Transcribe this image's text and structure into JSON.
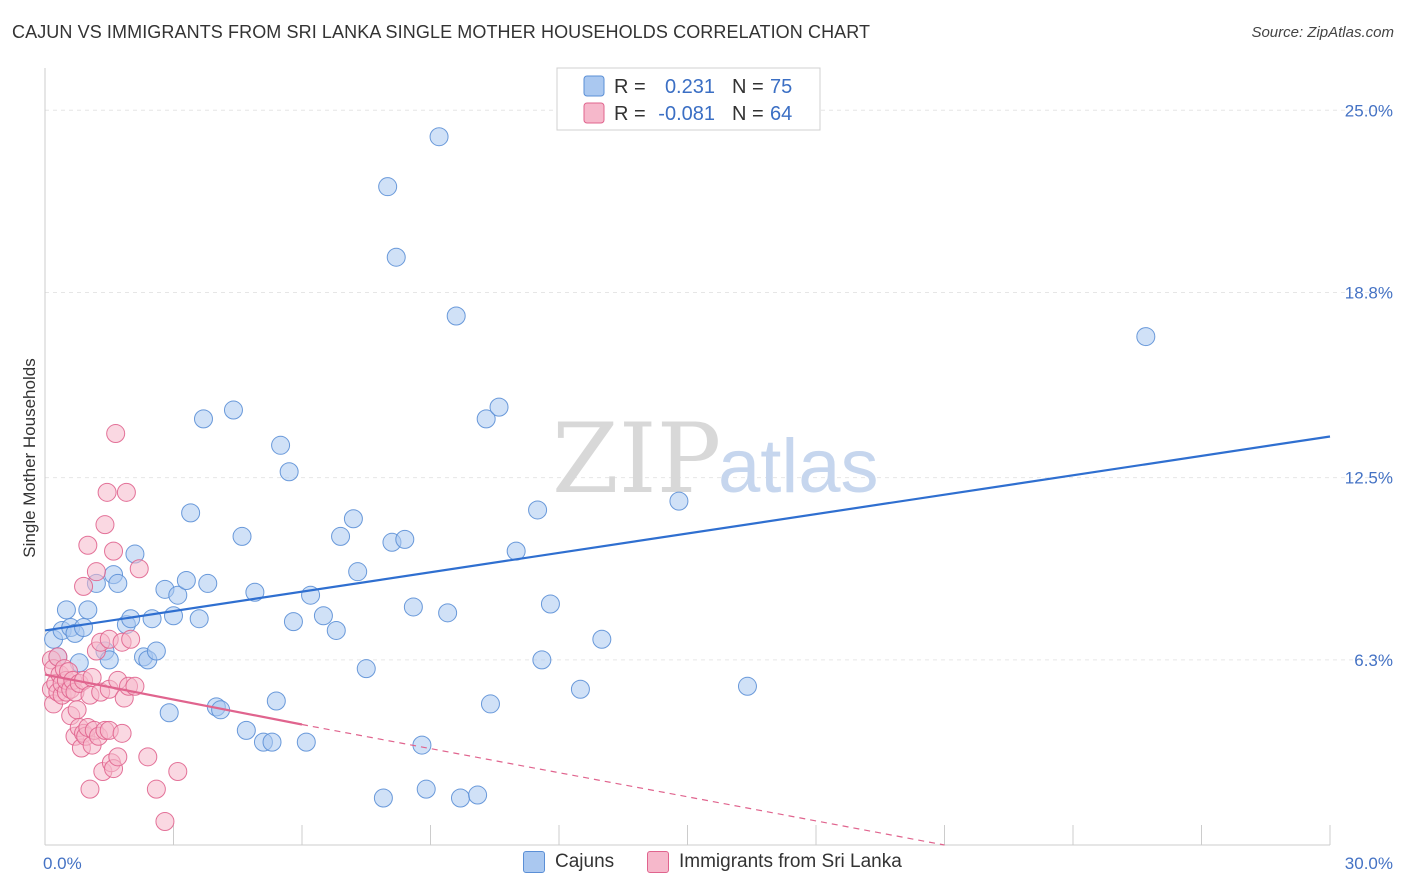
{
  "chart_data": {
    "type": "scatter",
    "title": "CAJUN VS IMMIGRANTS FROM SRI LANKA SINGLE MOTHER HOUSEHOLDS CORRELATION CHART",
    "source": "Source: ZipAtlas.com",
    "xlabel": "",
    "ylabel": "Single Mother Households",
    "xlim": [
      0,
      30
    ],
    "ylim": [
      0,
      26.2
    ],
    "x_tick_labels": [
      "0.0%",
      "30.0%"
    ],
    "y_ticks": [
      6.3,
      12.5,
      18.8,
      25.0
    ],
    "y_tick_labels": [
      "6.3%",
      "12.5%",
      "18.8%",
      "25.0%"
    ],
    "watermark": {
      "part1": "ZIP",
      "part2": "atlas"
    },
    "stats": {
      "r_label": "R =",
      "n_label": "N =",
      "rows": [
        {
          "series": "Cajuns",
          "r": "0.231",
          "n": "75"
        },
        {
          "series": "Immigrants from Sri Lanka",
          "r": "-0.081",
          "n": "64"
        }
      ]
    },
    "series": [
      {
        "name": "Cajuns",
        "color": "#5b8fd6",
        "fill": "#aac8f0",
        "trend": {
          "x0": 0.0,
          "y0": 7.3,
          "x1": 30.0,
          "y1": 13.9
        },
        "points": [
          [
            0.2,
            7.0
          ],
          [
            0.3,
            6.4
          ],
          [
            0.4,
            7.3
          ],
          [
            0.5,
            8.0
          ],
          [
            0.6,
            7.4
          ],
          [
            0.7,
            7.2
          ],
          [
            0.8,
            6.2
          ],
          [
            0.9,
            7.4
          ],
          [
            1.0,
            8.0
          ],
          [
            1.2,
            8.9
          ],
          [
            1.4,
            6.6
          ],
          [
            1.5,
            6.3
          ],
          [
            1.6,
            9.2
          ],
          [
            1.7,
            8.9
          ],
          [
            1.9,
            7.5
          ],
          [
            2.0,
            7.7
          ],
          [
            2.1,
            9.9
          ],
          [
            2.3,
            6.4
          ],
          [
            2.4,
            6.3
          ],
          [
            2.5,
            7.7
          ],
          [
            2.6,
            6.6
          ],
          [
            2.8,
            8.7
          ],
          [
            2.9,
            4.5
          ],
          [
            3.0,
            7.8
          ],
          [
            3.1,
            8.5
          ],
          [
            3.3,
            9.0
          ],
          [
            3.4,
            11.3
          ],
          [
            3.6,
            7.7
          ],
          [
            3.7,
            14.5
          ],
          [
            3.8,
            8.9
          ],
          [
            4.0,
            4.7
          ],
          [
            4.1,
            4.6
          ],
          [
            4.4,
            14.8
          ],
          [
            4.6,
            10.5
          ],
          [
            4.7,
            3.9
          ],
          [
            4.9,
            8.6
          ],
          [
            5.1,
            3.5
          ],
          [
            5.3,
            3.5
          ],
          [
            5.4,
            4.9
          ],
          [
            5.5,
            13.6
          ],
          [
            5.7,
            12.7
          ],
          [
            5.8,
            7.6
          ],
          [
            6.1,
            3.5
          ],
          [
            6.2,
            8.5
          ],
          [
            6.5,
            7.8
          ],
          [
            6.8,
            7.3
          ],
          [
            6.9,
            10.5
          ],
          [
            7.2,
            11.1
          ],
          [
            7.3,
            9.3
          ],
          [
            7.5,
            6.0
          ],
          [
            7.9,
            1.6
          ],
          [
            8.0,
            22.4
          ],
          [
            8.1,
            10.3
          ],
          [
            8.2,
            20.0
          ],
          [
            8.4,
            10.4
          ],
          [
            8.6,
            8.1
          ],
          [
            8.8,
            3.4
          ],
          [
            8.9,
            1.9
          ],
          [
            9.2,
            24.1
          ],
          [
            9.4,
            7.9
          ],
          [
            9.6,
            18.0
          ],
          [
            9.7,
            1.6
          ],
          [
            10.1,
            1.7
          ],
          [
            10.3,
            14.5
          ],
          [
            10.4,
            4.8
          ],
          [
            10.6,
            14.9
          ],
          [
            11.0,
            10.0
          ],
          [
            11.5,
            11.4
          ],
          [
            11.6,
            6.3
          ],
          [
            11.8,
            8.2
          ],
          [
            12.5,
            5.3
          ],
          [
            13.0,
            7.0
          ],
          [
            14.8,
            11.7
          ],
          [
            16.4,
            5.4
          ],
          [
            25.7,
            17.3
          ]
        ]
      },
      {
        "name": "Immigrants from Sri Lanka",
        "color": "#e0648e",
        "fill": "#f6b8cb",
        "trend": {
          "x0": 0.0,
          "y0": 5.8,
          "x1": 6.0,
          "y1": 4.1
        },
        "trend_dashed": {
          "x0": 6.0,
          "y0": 4.1,
          "x1": 21.0,
          "y1": 0.0
        },
        "points": [
          [
            0.15,
            5.3
          ],
          [
            0.15,
            6.3
          ],
          [
            0.2,
            4.8
          ],
          [
            0.2,
            6.0
          ],
          [
            0.25,
            5.5
          ],
          [
            0.3,
            5.2
          ],
          [
            0.3,
            6.4
          ],
          [
            0.35,
            5.8
          ],
          [
            0.4,
            5.1
          ],
          [
            0.4,
            5.5
          ],
          [
            0.45,
            6.0
          ],
          [
            0.5,
            5.2
          ],
          [
            0.5,
            5.6
          ],
          [
            0.55,
            5.9
          ],
          [
            0.6,
            5.3
          ],
          [
            0.6,
            4.4
          ],
          [
            0.65,
            5.6
          ],
          [
            0.7,
            3.7
          ],
          [
            0.7,
            5.2
          ],
          [
            0.75,
            4.6
          ],
          [
            0.8,
            4.0
          ],
          [
            0.8,
            5.5
          ],
          [
            0.85,
            3.3
          ],
          [
            0.9,
            3.8
          ],
          [
            0.9,
            5.6
          ],
          [
            0.9,
            8.8
          ],
          [
            0.95,
            3.7
          ],
          [
            1.0,
            10.2
          ],
          [
            1.0,
            4.0
          ],
          [
            1.05,
            5.1
          ],
          [
            1.05,
            1.9
          ],
          [
            1.1,
            3.4
          ],
          [
            1.1,
            5.7
          ],
          [
            1.15,
            3.9
          ],
          [
            1.2,
            6.6
          ],
          [
            1.2,
            9.3
          ],
          [
            1.25,
            3.7
          ],
          [
            1.3,
            5.2
          ],
          [
            1.3,
            6.9
          ],
          [
            1.35,
            2.5
          ],
          [
            1.4,
            3.9
          ],
          [
            1.4,
            10.9
          ],
          [
            1.45,
            12.0
          ],
          [
            1.5,
            5.3
          ],
          [
            1.5,
            7.0
          ],
          [
            1.5,
            3.9
          ],
          [
            1.55,
            2.8
          ],
          [
            1.6,
            2.6
          ],
          [
            1.6,
            10.0
          ],
          [
            1.65,
            14.0
          ],
          [
            1.7,
            5.6
          ],
          [
            1.7,
            3.0
          ],
          [
            1.8,
            6.9
          ],
          [
            1.8,
            3.8
          ],
          [
            1.85,
            5.0
          ],
          [
            1.9,
            12.0
          ],
          [
            1.95,
            5.4
          ],
          [
            2.0,
            7.0
          ],
          [
            2.1,
            5.4
          ],
          [
            2.2,
            9.4
          ],
          [
            2.4,
            3.0
          ],
          [
            2.6,
            1.9
          ],
          [
            2.8,
            0.8
          ],
          [
            3.1,
            2.5
          ]
        ]
      }
    ]
  },
  "legend": {
    "items": [
      "Cajuns",
      "Immigrants from Sri Lanka"
    ]
  }
}
